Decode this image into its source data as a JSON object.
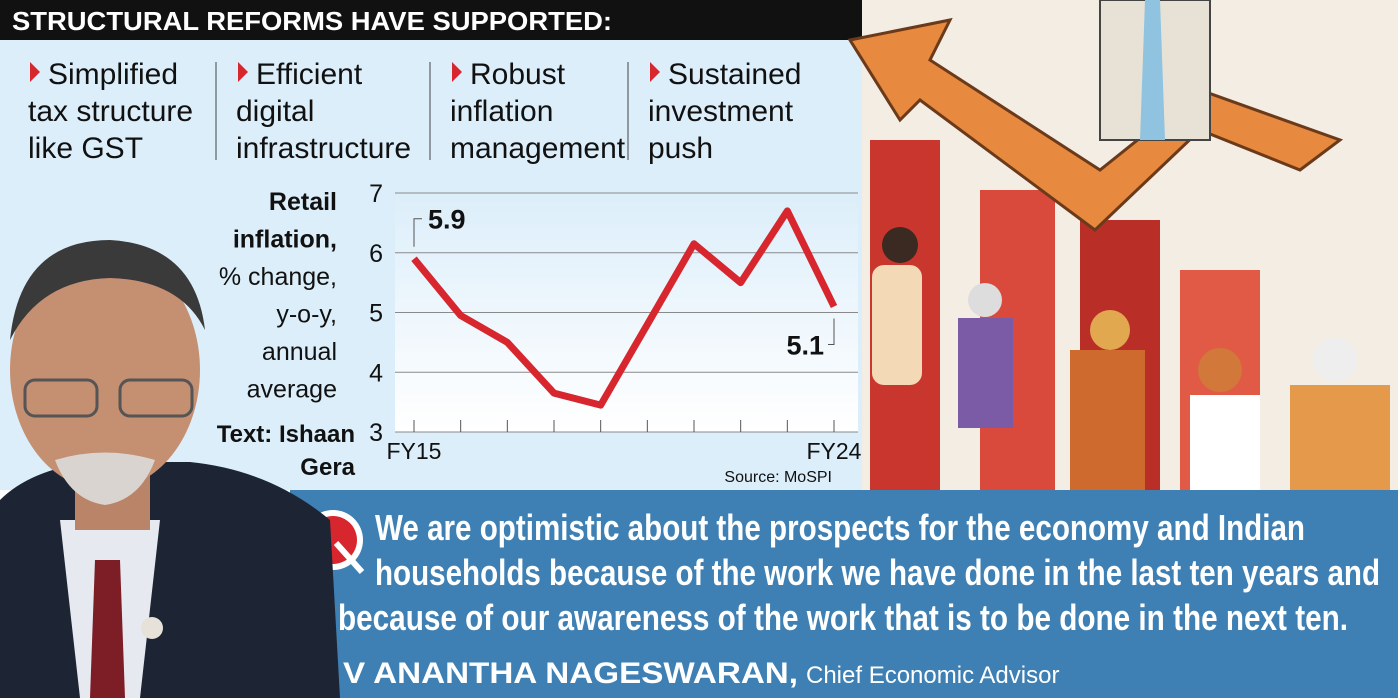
{
  "header": {
    "title": "STRUCTURAL REFORMS HAVE SUPPORTED:"
  },
  "reforms": [
    [
      "Simplified",
      "tax structure",
      "like GST"
    ],
    [
      "Efficient",
      "digital",
      "infrastructure"
    ],
    [
      "Robust",
      "inflation",
      "management"
    ],
    [
      "Sustained",
      "investment",
      "push"
    ]
  ],
  "chart_data": {
    "type": "line",
    "ylabel": [
      "Retail",
      "inflation,",
      "% change,",
      "y-o-y,",
      "annual",
      "average"
    ],
    "categories": [
      "FY15",
      null,
      null,
      null,
      null,
      null,
      null,
      null,
      null,
      "FY24"
    ],
    "values": [
      5.9,
      4.95,
      4.5,
      3.65,
      3.45,
      4.8,
      6.15,
      5.5,
      6.7,
      5.1
    ],
    "value_labels": [
      "5.9",
      null,
      null,
      null,
      null,
      null,
      null,
      null,
      null,
      "5.1"
    ],
    "color": "#d7262e",
    "ylim": [
      3,
      7
    ],
    "yticks": [
      3,
      4,
      5,
      6,
      7
    ],
    "grid": true,
    "source": "Source: MoSPI"
  },
  "credit": [
    "Text: Ishaan",
    "Gera"
  ],
  "quote": {
    "lines": [
      "We are optimistic about the prospects for the economy and Indian",
      "households because of the work we have done in the last ten years and",
      "because of our awareness of the work that is to be done in the next ten."
    ],
    "name": "V ANANTHA NAGESWARAN,",
    "role": "Chief Economic Advisor"
  }
}
